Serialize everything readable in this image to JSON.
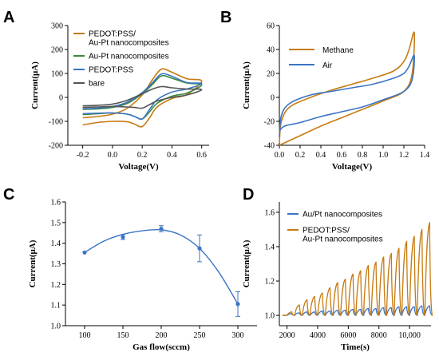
{
  "colors": {
    "orange": "#c77b12",
    "green": "#3a8a3a",
    "blue": "#3b74c4",
    "gray": "#555555",
    "black": "#000000"
  },
  "chart_data": [
    {
      "panel": "A",
      "type": "line",
      "xlabel": "Voltage(V)",
      "ylabel": "Current(μA)",
      "xlim": [
        -0.3,
        0.65
      ],
      "ylim": [
        -200,
        300
      ],
      "xticks": [
        -0.2,
        0.0,
        0.2,
        0.4,
        0.6
      ],
      "yticks": [
        -200,
        -100,
        0,
        100,
        200,
        300
      ],
      "legend_position": "top-left",
      "series": [
        {
          "name": "PEDOT:PSS/\nAu-Pt nanocomposites",
          "color_key": "orange",
          "forward": [
            [
              -0.2,
              -85
            ],
            [
              -0.1,
              -80
            ],
            [
              0.0,
              -70
            ],
            [
              0.1,
              -45
            ],
            [
              0.2,
              10
            ],
            [
              0.27,
              75
            ],
            [
              0.33,
              118
            ],
            [
              0.4,
              105
            ],
            [
              0.5,
              78
            ],
            [
              0.6,
              68
            ]
          ],
          "reverse": [
            [
              0.6,
              20
            ],
            [
              0.5,
              12
            ],
            [
              0.4,
              -5
            ],
            [
              0.3,
              -40
            ],
            [
              0.25,
              -85
            ],
            [
              0.2,
              -122
            ],
            [
              0.15,
              -112
            ],
            [
              0.1,
              -102
            ],
            [
              0.0,
              -100
            ],
            [
              -0.1,
              -105
            ],
            [
              -0.2,
              -115
            ]
          ]
        },
        {
          "name": "Au-Pt nanocomposites",
          "color_key": "green",
          "forward": [
            [
              -0.2,
              -50
            ],
            [
              -0.1,
              -48
            ],
            [
              0.0,
              -42
            ],
            [
              0.1,
              -25
            ],
            [
              0.2,
              15
            ],
            [
              0.27,
              55
            ],
            [
              0.33,
              90
            ],
            [
              0.4,
              80
            ],
            [
              0.5,
              60
            ],
            [
              0.6,
              52
            ]
          ],
          "reverse": [
            [
              0.6,
              25
            ],
            [
              0.5,
              18
            ],
            [
              0.4,
              5
            ],
            [
              0.3,
              -25
            ],
            [
              0.25,
              -60
            ],
            [
              0.2,
              -90
            ],
            [
              0.15,
              -80
            ],
            [
              0.1,
              -70
            ],
            [
              0.0,
              -65
            ],
            [
              -0.1,
              -68
            ],
            [
              -0.2,
              -72
            ]
          ]
        },
        {
          "name": "PEDOT:PSS",
          "color_key": "blue",
          "forward": [
            [
              -0.2,
              -48
            ],
            [
              -0.1,
              -45
            ],
            [
              0.0,
              -38
            ],
            [
              0.1,
              -20
            ],
            [
              0.2,
              20
            ],
            [
              0.27,
              62
            ],
            [
              0.33,
              98
            ],
            [
              0.4,
              88
            ],
            [
              0.5,
              62
            ],
            [
              0.6,
              58
            ]
          ],
          "reverse": [
            [
              0.6,
              42
            ],
            [
              0.5,
              35
            ],
            [
              0.4,
              22
            ],
            [
              0.3,
              -10
            ],
            [
              0.25,
              -50
            ],
            [
              0.2,
              -90
            ],
            [
              0.15,
              -80
            ],
            [
              0.1,
              -70
            ],
            [
              0.0,
              -65
            ],
            [
              -0.1,
              -66
            ],
            [
              -0.2,
              -68
            ]
          ]
        },
        {
          "name": "bare",
          "color_key": "gray",
          "forward": [
            [
              -0.2,
              -35
            ],
            [
              -0.1,
              -33
            ],
            [
              0.0,
              -28
            ],
            [
              0.1,
              -12
            ],
            [
              0.2,
              15
            ],
            [
              0.27,
              35
            ],
            [
              0.33,
              45
            ],
            [
              0.4,
              40
            ],
            [
              0.5,
              35
            ],
            [
              0.6,
              32
            ]
          ],
          "reverse": [
            [
              0.6,
              15
            ],
            [
              0.5,
              10
            ],
            [
              0.4,
              0
            ],
            [
              0.3,
              -15
            ],
            [
              0.25,
              -30
            ],
            [
              0.2,
              -45
            ],
            [
              0.15,
              -42
            ],
            [
              0.1,
              -40
            ],
            [
              0.0,
              -38
            ],
            [
              -0.1,
              -40
            ],
            [
              -0.2,
              -42
            ]
          ]
        }
      ]
    },
    {
      "panel": "B",
      "type": "line",
      "xlabel": "Voltage(V)",
      "ylabel": "Current(μA)",
      "xlim": [
        0.0,
        1.4
      ],
      "ylim": [
        -40,
        60
      ],
      "xticks": [
        0.0,
        0.2,
        0.4,
        0.6,
        0.8,
        1.0,
        1.2,
        1.4
      ],
      "yticks": [
        -40,
        -20,
        0,
        20,
        40,
        60
      ],
      "legend_position": "top-left",
      "series": [
        {
          "name": "Methane",
          "color_key": "orange",
          "forward": [
            [
              0.0,
              -38
            ],
            [
              0.02,
              -20
            ],
            [
              0.1,
              -8
            ],
            [
              0.3,
              0
            ],
            [
              0.5,
              6
            ],
            [
              0.7,
              11
            ],
            [
              0.9,
              16
            ],
            [
              1.1,
              22
            ],
            [
              1.2,
              30
            ],
            [
              1.25,
              40
            ],
            [
              1.3,
              54
            ]
          ],
          "reverse": [
            [
              1.3,
              54
            ],
            [
              1.28,
              20
            ],
            [
              1.2,
              5
            ],
            [
              1.0,
              -3
            ],
            [
              0.8,
              -10
            ],
            [
              0.6,
              -17
            ],
            [
              0.4,
              -24
            ],
            [
              0.2,
              -32
            ],
            [
              0.05,
              -38
            ],
            [
              0.0,
              -40
            ]
          ]
        },
        {
          "name": "Air",
          "color_key": "blue",
          "forward": [
            [
              0.0,
              -33
            ],
            [
              0.02,
              -15
            ],
            [
              0.1,
              -5
            ],
            [
              0.3,
              2
            ],
            [
              0.5,
              5
            ],
            [
              0.7,
              8
            ],
            [
              0.9,
              11
            ],
            [
              1.1,
              16
            ],
            [
              1.2,
              20
            ],
            [
              1.25,
              26
            ],
            [
              1.3,
              35
            ]
          ],
          "reverse": [
            [
              1.3,
              35
            ],
            [
              1.28,
              15
            ],
            [
              1.2,
              5
            ],
            [
              1.0,
              -2
            ],
            [
              0.8,
              -8
            ],
            [
              0.6,
              -12
            ],
            [
              0.4,
              -16
            ],
            [
              0.2,
              -21
            ],
            [
              0.05,
              -24
            ],
            [
              0.0,
              -28
            ]
          ]
        }
      ]
    },
    {
      "panel": "C",
      "type": "scatter",
      "xlabel": "Gas flow(sccm)",
      "ylabel": "Current(μA)",
      "xlim": [
        75,
        325
      ],
      "ylim": [
        1.0,
        1.6
      ],
      "xticks": [
        100,
        150,
        200,
        250,
        300
      ],
      "yticks": [
        1.0,
        1.1,
        1.2,
        1.3,
        1.4,
        1.5,
        1.6
      ],
      "x": [
        100,
        150,
        200,
        250,
        300
      ],
      "y": [
        1.355,
        1.43,
        1.47,
        1.375,
        1.105
      ],
      "err": [
        0.0,
        0.012,
        0.015,
        0.065,
        0.06
      ],
      "fit": [
        [
          100,
          1.355
        ],
        [
          125,
          1.41
        ],
        [
          150,
          1.443
        ],
        [
          175,
          1.46
        ],
        [
          200,
          1.465
        ],
        [
          225,
          1.44
        ],
        [
          250,
          1.375
        ],
        [
          275,
          1.26
        ],
        [
          300,
          1.105
        ]
      ],
      "color_key": "blue"
    },
    {
      "panel": "D",
      "type": "line",
      "xlabel": "Time(s)",
      "ylabel": "Current(μA)",
      "xlim": [
        1500,
        11400
      ],
      "ylim": [
        0.94,
        1.66
      ],
      "xticks": [
        2000,
        4000,
        6000,
        8000,
        10000
      ],
      "xticklabels": [
        "2000",
        "4000",
        "6000",
        "8000",
        "10,000"
      ],
      "yticks": [
        1.0,
        1.2,
        1.4,
        1.6
      ],
      "legend_position": "top-left",
      "pulse_start": 2000,
      "pulse_period": 500,
      "series": [
        {
          "name": "Au/Pt nanocomposites",
          "color_key": "blue",
          "peaks": [
            1.01,
            1.015,
            1.02,
            1.02,
            1.025,
            1.025,
            1.03,
            1.03,
            1.035,
            1.035,
            1.04,
            1.04,
            1.045,
            1.045,
            1.05,
            1.05,
            1.05,
            1.055,
            1.055
          ]
        },
        {
          "name": "PEDOT:PSS/\nAu-Pt nanocomposites",
          "color_key": "orange",
          "peaks": [
            1.02,
            1.06,
            1.09,
            1.11,
            1.13,
            1.16,
            1.19,
            1.21,
            1.24,
            1.26,
            1.29,
            1.31,
            1.34,
            1.36,
            1.39,
            1.43,
            1.46,
            1.5,
            1.54
          ]
        }
      ]
    }
  ]
}
